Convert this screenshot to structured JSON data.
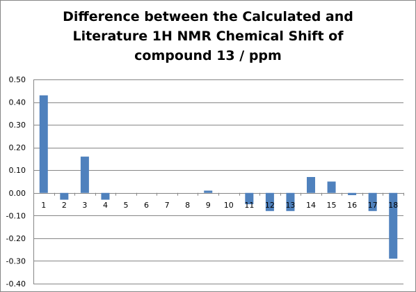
{
  "chart_data": {
    "type": "bar",
    "title_lines": [
      "Difference between the Calculated and",
      "Literature 1H NMR Chemical Shift of",
      "compound 13 / ppm"
    ],
    "categories": [
      "1",
      "2",
      "3",
      "4",
      "5",
      "6",
      "7",
      "8",
      "9",
      "10",
      "11",
      "12",
      "13",
      "14",
      "15",
      "16",
      "17",
      "18"
    ],
    "values": [
      0.43,
      -0.03,
      0.16,
      -0.03,
      0,
      0,
      0,
      0,
      0.01,
      0,
      -0.05,
      -0.08,
      -0.08,
      0.07,
      0.05,
      -0.01,
      -0.08,
      -0.29
    ],
    "ylim": [
      -0.4,
      0.5
    ],
    "yticks": [
      "0.50",
      "0.40",
      "0.30",
      "0.20",
      "0.10",
      "0.00",
      "-0.10",
      "-0.20",
      "-0.30",
      "-0.40"
    ],
    "ytick_values": [
      0.5,
      0.4,
      0.3,
      0.2,
      0.1,
      0,
      -0.1,
      -0.2,
      -0.3,
      -0.4
    ],
    "grid": true,
    "legend": "none",
    "bar_color": "#4F81BD",
    "grid_color": "#868686"
  }
}
